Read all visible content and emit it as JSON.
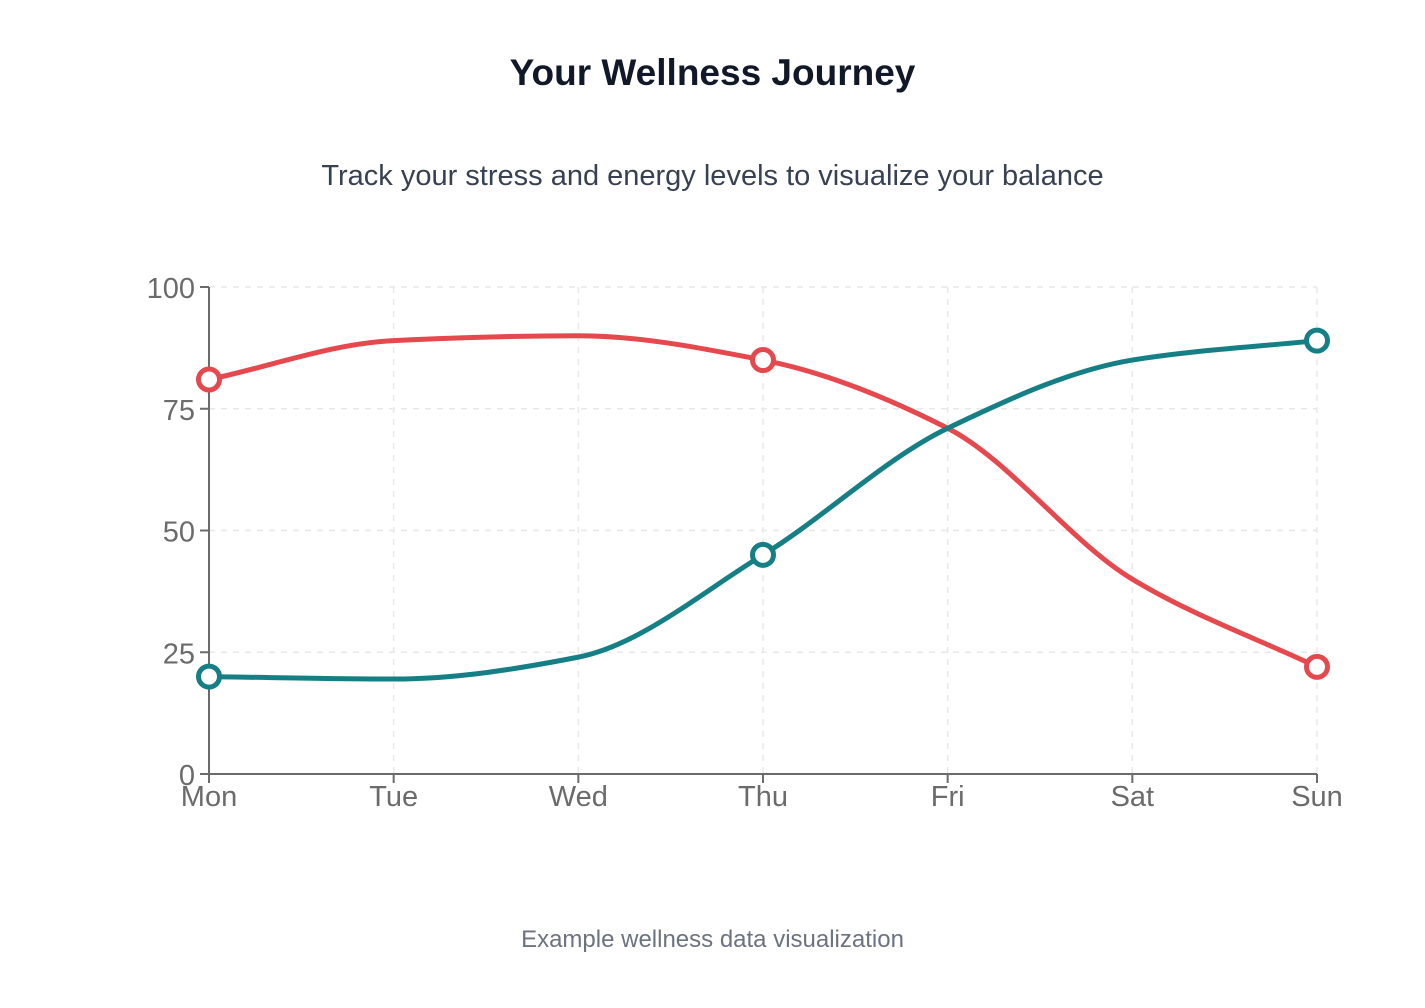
{
  "page": {
    "title": "Your Wellness Journey",
    "subtitle": "Track your stress and energy levels to visualize your balance",
    "footer": "Example wellness data visualization"
  },
  "chart_data": {
    "type": "line",
    "categories": [
      "Mon",
      "Tue",
      "Wed",
      "Thu",
      "Fri",
      "Sat",
      "Sun"
    ],
    "series": [
      {
        "key": "stress",
        "color": "#e5484d",
        "values": [
          81,
          89,
          90,
          85,
          71,
          40,
          22
        ],
        "marked": [
          0,
          3,
          6
        ]
      },
      {
        "key": "energy",
        "color": "#157f85",
        "values": [
          20,
          19.5,
          24,
          45,
          71,
          85,
          89
        ],
        "marked": [
          0,
          3,
          6
        ]
      }
    ],
    "ylim": [
      0,
      100
    ],
    "yticks": [
      0,
      25,
      50,
      75,
      100
    ],
    "grid": true,
    "curve": "smooth"
  }
}
